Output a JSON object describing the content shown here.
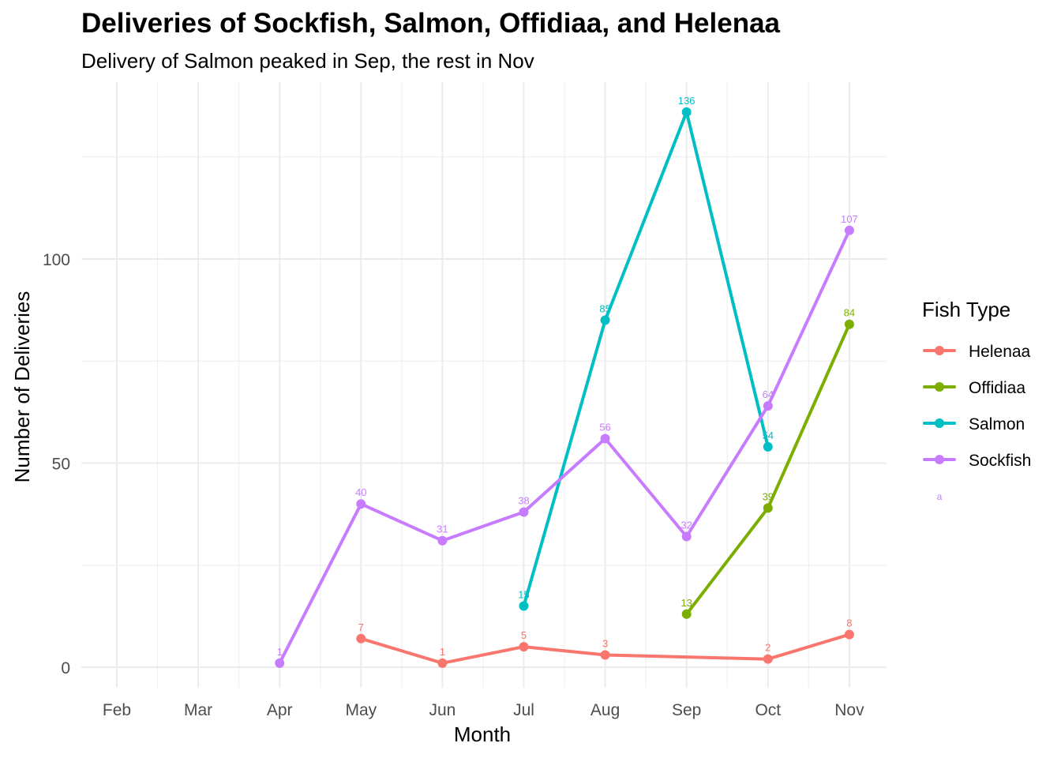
{
  "chart_data": {
    "type": "line",
    "title": "Deliveries of Sockfish, Salmon, Offidiaa, and Helenaa",
    "subtitle": "Delivery of Salmon peaked in Sep, the rest in Nov",
    "xlabel": "Month",
    "ylabel": "Number of Deliveries",
    "x_ticks": [
      "Feb",
      "Mar",
      "Apr",
      "May",
      "Jun",
      "Jul",
      "Aug",
      "Sep",
      "Oct",
      "Nov"
    ],
    "y_ticks": [
      "0",
      "50",
      "100"
    ],
    "ylim": [
      -5,
      141
    ],
    "grid": true,
    "legend": {
      "title": "Fish Type",
      "position": "right",
      "stray_text": "a"
    },
    "series": [
      {
        "name": "Helenaa",
        "color": "#F8766D",
        "points": [
          {
            "x": "May",
            "y": 7,
            "label": "7"
          },
          {
            "x": "Jun",
            "y": 1,
            "label": "1"
          },
          {
            "x": "Jul",
            "y": 5,
            "label": "5"
          },
          {
            "x": "Aug",
            "y": 3,
            "label": "3"
          },
          {
            "x": "Oct",
            "y": 2,
            "label": "2"
          },
          {
            "x": "Nov",
            "y": 8,
            "label": "8"
          }
        ]
      },
      {
        "name": "Offidiaa",
        "color": "#7CAE00",
        "points": [
          {
            "x": "Sep",
            "y": 13,
            "label": "13"
          },
          {
            "x": "Oct",
            "y": 39,
            "label": "39"
          },
          {
            "x": "Nov",
            "y": 84,
            "label": "84"
          }
        ]
      },
      {
        "name": "Salmon",
        "color": "#00BFC4",
        "points": [
          {
            "x": "Jul",
            "y": 15,
            "label": "15"
          },
          {
            "x": "Aug",
            "y": 85,
            "label": "85"
          },
          {
            "x": "Sep",
            "y": 136,
            "label": "136"
          },
          {
            "x": "Oct",
            "y": 54,
            "label": "54"
          }
        ]
      },
      {
        "name": "Sockfish",
        "color": "#C77CFF",
        "points": [
          {
            "x": "Apr",
            "y": 1,
            "label": "1"
          },
          {
            "x": "May",
            "y": 40,
            "label": "40"
          },
          {
            "x": "Jun",
            "y": 31,
            "label": "31"
          },
          {
            "x": "Jul",
            "y": 38,
            "label": "38"
          },
          {
            "x": "Aug",
            "y": 56,
            "label": "56"
          },
          {
            "x": "Sep",
            "y": 32,
            "label": "32"
          },
          {
            "x": "Oct",
            "y": 64,
            "label": "64"
          },
          {
            "x": "Nov",
            "y": 107,
            "label": "107"
          }
        ]
      }
    ]
  }
}
